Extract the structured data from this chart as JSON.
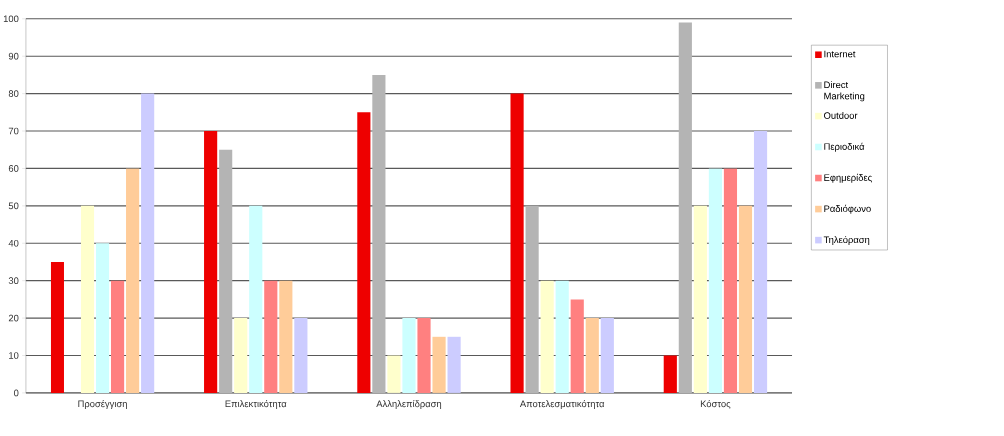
{
  "chart_data": {
    "type": "bar",
    "categories": [
      "Προσέγγιση",
      "Επιλεκτικότητα",
      "Αλληλεπίδραση",
      "Αποτελεσματικότητα",
      "Κόστος"
    ],
    "series": [
      {
        "name": "Internet",
        "color": "#ee0000",
        "values": [
          35,
          70,
          75,
          80,
          10
        ]
      },
      {
        "name": "Direct Marketing",
        "color": "#b4b4b4",
        "values": [
          null,
          65,
          85,
          50,
          99
        ]
      },
      {
        "name": "Outdoor",
        "color": "#ffffcc",
        "values": [
          50,
          20,
          10,
          30,
          50
        ]
      },
      {
        "name": "Περιοδικά",
        "color": "#ccffff",
        "values": [
          40,
          50,
          20,
          30,
          60
        ]
      },
      {
        "name": "Εφημερίδες",
        "color": "#ff8080",
        "values": [
          30,
          30,
          20,
          25,
          60
        ]
      },
      {
        "name": "Ραδιόφωνο",
        "color": "#ffcc99",
        "values": [
          60,
          30,
          15,
          20,
          50
        ]
      },
      {
        "name": "Τηλεόραση",
        "color": "#ccccff",
        "values": [
          80,
          20,
          15,
          20,
          70
        ]
      }
    ],
    "ylim": [
      0,
      100
    ],
    "yticks": [
      0,
      10,
      20,
      30,
      40,
      50,
      60,
      70,
      80,
      90,
      100
    ],
    "grid": "y",
    "legend": "right"
  }
}
